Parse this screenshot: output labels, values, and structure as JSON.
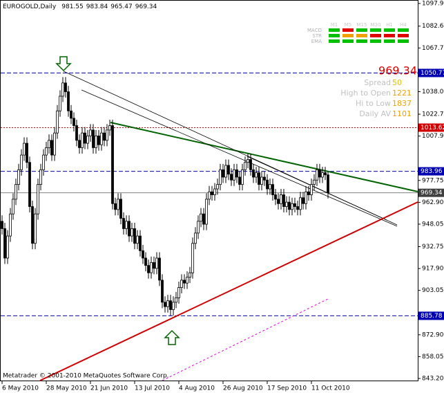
{
  "chart_data": {
    "type": "candlestick",
    "symbol": "EUROGOLD,Daily",
    "ylim": [
      843.2,
      1097.99
    ],
    "yticks": [
      {
        "value": 1097.99,
        "label": "1097.99"
      },
      {
        "value": 1082.6,
        "label": "1082.60"
      },
      {
        "value": 1067.75,
        "label": "1067.75"
      },
      {
        "value": 1038.05,
        "label": "1038.05"
      },
      {
        "value": 1022.75,
        "label": "1022.75"
      },
      {
        "value": 1007.9,
        "label": "1007.90"
      },
      {
        "value": 977.75,
        "label": "977.75"
      },
      {
        "value": 962.9,
        "label": "962.90"
      },
      {
        "value": 948.05,
        "label": "948.05"
      },
      {
        "value": 932.75,
        "label": "932.75"
      },
      {
        "value": 917.9,
        "label": "917.90"
      },
      {
        "value": 903.05,
        "label": "903.05"
      },
      {
        "value": 872.9,
        "label": "872.90"
      },
      {
        "value": 858.05,
        "label": "858.05"
      },
      {
        "value": 843.2,
        "label": "843.20"
      }
    ],
    "levels": [
      {
        "value": 1050.77,
        "color": "#0000b0"
      },
      {
        "value": 1013.62,
        "color": "#d00000"
      },
      {
        "value": 983.96,
        "color": "#0000b0"
      },
      {
        "value": 885.78,
        "color": "#0000b0"
      }
    ],
    "categories": [
      "6 May 2010",
      null,
      null,
      null,
      null,
      null,
      null,
      null,
      null,
      null,
      null,
      null,
      null,
      null,
      null,
      null,
      "28 May 2010",
      null,
      null,
      null,
      null,
      null,
      null,
      null,
      null,
      null,
      null,
      null,
      null,
      null,
      null,
      null,
      "21 Jun 2010",
      null,
      null,
      null,
      null,
      null,
      null,
      null,
      null,
      null,
      null,
      null,
      null,
      null,
      null,
      null,
      "13 Jul 2010",
      null,
      null,
      null,
      null,
      null,
      null,
      null,
      null,
      null,
      null,
      null,
      null,
      null,
      null,
      null,
      "4 Aug 2010",
      null,
      null,
      null,
      null,
      null,
      null,
      null,
      null,
      null,
      null,
      null,
      null,
      null,
      null,
      null,
      "26 Aug 2010",
      null,
      null,
      null,
      null,
      null,
      null,
      null,
      null,
      null,
      null,
      null,
      null,
      null,
      null,
      null,
      "17 Sep 2010",
      null,
      null,
      null,
      null,
      null,
      null,
      null,
      null,
      null,
      null,
      null,
      null,
      null,
      null,
      null,
      "11 Oct 2010",
      null,
      null,
      null,
      null,
      null,
      null
    ],
    "open": [
      950,
      945,
      925,
      940,
      955,
      965,
      975,
      985,
      995,
      1003,
      990,
      960,
      935,
      955,
      975,
      985,
      995,
      1000,
      1005,
      995,
      1010,
      1025,
      1035,
      1044,
      1038,
      1025,
      1020,
      1015,
      1005,
      1000,
      1010,
      1003,
      1008,
      1012,
      1000,
      1008,
      1002,
      1010,
      1005,
      1012,
      1015,
      962,
      958,
      965,
      952,
      945,
      950,
      940,
      945,
      935,
      940,
      930,
      925,
      920,
      915,
      922,
      918,
      925,
      910,
      895,
      892,
      896,
      890,
      895,
      898,
      905,
      910,
      908,
      912,
      915,
      935,
      942,
      950,
      955,
      948,
      965,
      970,
      968,
      972,
      975,
      985,
      980,
      988,
      982,
      978,
      985,
      980,
      975,
      985,
      990,
      992,
      985,
      980,
      983,
      975,
      980,
      978,
      972,
      975,
      968,
      965,
      962,
      968,
      960,
      963,
      958,
      962,
      960,
      958,
      966,
      962,
      970,
      968,
      975,
      978,
      985,
      980,
      983,
      981.55
    ],
    "high": [
      954,
      949,
      944,
      959,
      969,
      979,
      989,
      999,
      1007,
      1007,
      994,
      964,
      959,
      979,
      989,
      999,
      1004,
      1009,
      1009,
      1014,
      1029,
      1039,
      1048,
      1048,
      1042,
      1029,
      1024,
      1019,
      1009,
      1014,
      1014,
      1012,
      1016,
      1016,
      1012,
      1012,
      1014,
      1014,
      1016,
      1019,
      1019,
      966,
      969,
      969,
      956,
      954,
      954,
      949,
      949,
      944,
      944,
      934,
      929,
      924,
      926,
      926,
      929,
      929,
      914,
      899,
      900,
      900,
      899,
      902,
      909,
      914,
      914,
      916,
      919,
      939,
      946,
      954,
      959,
      959,
      969,
      974,
      974,
      976,
      979,
      989,
      989,
      992,
      992,
      986,
      989,
      989,
      984,
      989,
      994,
      996,
      996,
      989,
      987,
      987,
      984,
      984,
      982,
      979,
      979,
      972,
      969,
      972,
      972,
      967,
      967,
      966,
      966,
      964,
      970,
      970,
      974,
      974,
      979,
      982,
      989,
      989,
      987,
      987,
      983.84
    ],
    "low": [
      941,
      921,
      921,
      936,
      951,
      961,
      971,
      981,
      991,
      986,
      956,
      931,
      931,
      951,
      971,
      981,
      991,
      996,
      991,
      991,
      1006,
      1021,
      1031,
      1034,
      1021,
      1016,
      1011,
      1001,
      996,
      996,
      999,
      999,
      1004,
      996,
      996,
      998,
      998,
      1001,
      1001,
      1008,
      958,
      954,
      954,
      948,
      941,
      941,
      936,
      936,
      931,
      931,
      926,
      921,
      916,
      911,
      911,
      914,
      914,
      906,
      891,
      888,
      888,
      886,
      886,
      891,
      894,
      901,
      904,
      904,
      908,
      911,
      931,
      938,
      946,
      944,
      944,
      961,
      964,
      964,
      968,
      971,
      976,
      976,
      978,
      974,
      974,
      976,
      971,
      971,
      981,
      986,
      981,
      976,
      976,
      971,
      971,
      974,
      968,
      968,
      964,
      961,
      958,
      958,
      956,
      956,
      954,
      954,
      956,
      954,
      954,
      958,
      958,
      964,
      964,
      971,
      974,
      976,
      976,
      978,
      965.47
    ],
    "close": [
      945,
      925,
      940,
      955,
      965,
      975,
      985,
      995,
      1003,
      990,
      960,
      935,
      955,
      975,
      985,
      995,
      1000,
      1005,
      995,
      1010,
      1025,
      1035,
      1044,
      1038,
      1025,
      1020,
      1015,
      1005,
      1000,
      1010,
      1003,
      1008,
      1012,
      1000,
      1008,
      1002,
      1010,
      1005,
      1012,
      1015,
      962,
      958,
      965,
      952,
      945,
      950,
      940,
      945,
      935,
      940,
      930,
      925,
      920,
      915,
      922,
      918,
      925,
      910,
      895,
      892,
      896,
      890,
      895,
      898,
      905,
      910,
      908,
      912,
      915,
      935,
      942,
      950,
      955,
      948,
      965,
      970,
      968,
      972,
      975,
      985,
      980,
      988,
      982,
      978,
      985,
      980,
      975,
      985,
      990,
      992,
      985,
      980,
      983,
      975,
      980,
      978,
      972,
      975,
      968,
      965,
      962,
      968,
      960,
      963,
      958,
      962,
      960,
      958,
      966,
      962,
      970,
      968,
      975,
      978,
      985,
      980,
      983,
      981.55,
      969.34
    ],
    "bull_color": "#ffffff",
    "bear_color": "#000000",
    "indicators": [
      "MACD",
      "STR",
      "EMA"
    ],
    "timeframes": [
      "M1",
      "M5",
      "M15",
      "M30",
      "H1",
      "H4"
    ],
    "stats": [
      {
        "label": "Spread",
        "value": 50
      },
      {
        "label": "High to Open",
        "value": 1221
      },
      {
        "label": "Hi to Low",
        "value": 1837
      },
      {
        "label": "Daily AV",
        "value": 1101
      }
    ],
    "footer": "Metatrader  © 2001-2010 MetaQuotes Software Corp."
  }
}
